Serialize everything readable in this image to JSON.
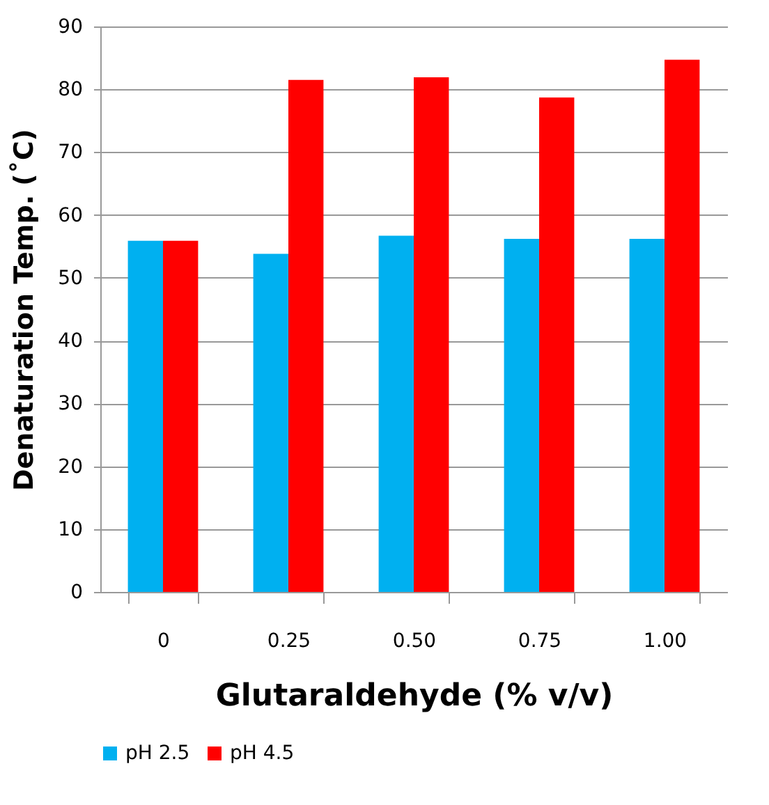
{
  "chart_data": {
    "type": "bar",
    "xlabel": "Glutaraldehyde (% v/v)",
    "ylabel": "Denaturation Temp. (˚C)",
    "categories": [
      "0",
      "0.25",
      "0.50",
      "0.75",
      "1.00"
    ],
    "series": [
      {
        "name": "pH 2.5",
        "color": "#00b0f0",
        "values": [
          55.9,
          53.8,
          56.7,
          56.2,
          56.2
        ]
      },
      {
        "name": "pH 4.5",
        "color": "#ff0000",
        "values": [
          55.9,
          81.5,
          81.9,
          78.7,
          84.7
        ]
      }
    ],
    "ylim": [
      0,
      90
    ],
    "yticks": [
      0,
      10,
      20,
      30,
      40,
      50,
      60,
      70,
      80,
      90
    ],
    "grid": "y",
    "legend": "bottom"
  }
}
